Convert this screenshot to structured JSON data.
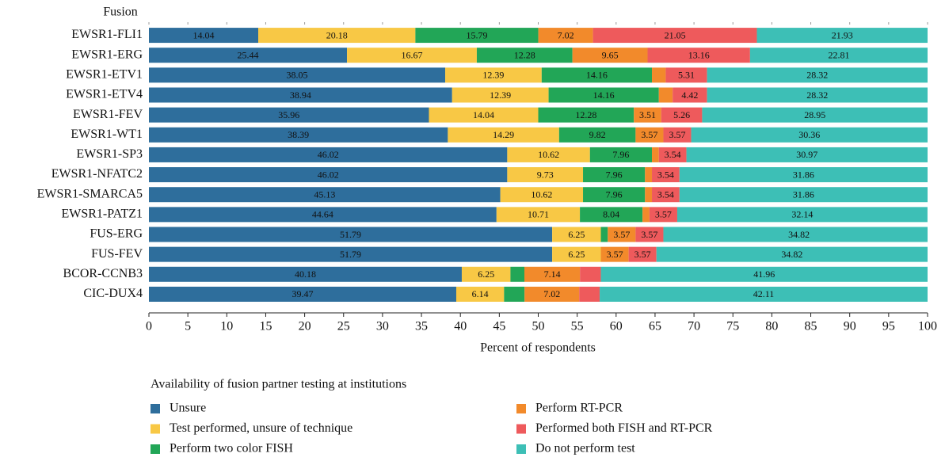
{
  "chart_data": {
    "type": "stacked-bar-horizontal",
    "y_label": "Fusion",
    "x_label": "Percent of respondents",
    "legend_title": "Availability of fusion partner testing at institutions",
    "categories": [
      "EWSR1-FLI1",
      "EWSR1-ERG",
      "EWSR1-ETV1",
      "EWSR1-ETV4",
      "EWSR1-FEV",
      "EWSR1-WT1",
      "EWSR1-SP3",
      "EWSR1-NFATC2",
      "EWSR1-SMARCA5",
      "EWSR1-PATZ1",
      "FUS-ERG",
      "FUS-FEV",
      "BCOR-CCNB3",
      "CIC-DUX4"
    ],
    "xlim": [
      0,
      100
    ],
    "xticks": [
      0,
      5,
      10,
      15,
      20,
      25,
      30,
      35,
      40,
      45,
      50,
      55,
      60,
      65,
      70,
      75,
      80,
      85,
      90,
      95,
      100
    ],
    "series": [
      {
        "name": "Unsure",
        "color": "#2e6e9c",
        "values": [
          14.04,
          25.44,
          38.05,
          38.94,
          35.96,
          38.39,
          46.02,
          46.02,
          45.13,
          44.64,
          51.79,
          51.79,
          40.18,
          39.47
        ],
        "value_labels": [
          "14.04",
          "25.44",
          "38.05",
          "38.94",
          "35.96",
          "38.39",
          "46.02",
          "46.02",
          "45.13",
          "44.64",
          "51.79",
          "51.79",
          "40.18",
          "39.47"
        ]
      },
      {
        "name": "Test performed, unsure of technique",
        "color": "#f8c845",
        "values": [
          20.18,
          16.67,
          12.39,
          12.39,
          14.04,
          14.29,
          10.62,
          9.73,
          10.62,
          10.71,
          6.25,
          6.25,
          6.25,
          6.14
        ],
        "value_labels": [
          "20.18",
          "16.67",
          "12.39",
          "12.39",
          "14.04",
          "14.29",
          "10.62",
          "9.73",
          "10.62",
          "10.71",
          "6.25",
          "6.25",
          "6.25",
          "6.14"
        ]
      },
      {
        "name": "Perform two color FISH",
        "color": "#22a657",
        "values": [
          15.79,
          12.28,
          14.16,
          14.16,
          12.28,
          9.82,
          7.96,
          7.96,
          7.96,
          8.04,
          0.89,
          0,
          1.79,
          2.63
        ],
        "value_labels": [
          "15.79",
          "12.28",
          "14.16",
          "14.16",
          "12.28",
          "9.82",
          "7.96",
          "7.96",
          "7.96",
          "8.04",
          null,
          null,
          null,
          null
        ]
      },
      {
        "name": "Perform RT-PCR",
        "color": "#f28a2b",
        "values": [
          7.02,
          9.65,
          1.77,
          1.77,
          3.51,
          3.57,
          0.89,
          0.89,
          0.89,
          0.89,
          3.57,
          3.57,
          7.14,
          7.02
        ],
        "value_labels": [
          "7.02",
          "9.65",
          null,
          null,
          "3.51",
          "3.57",
          null,
          null,
          null,
          null,
          "3.57",
          "3.57",
          "7.14",
          "7.02"
        ]
      },
      {
        "name": "Performed both FISH and RT-PCR",
        "color": "#ee5a5c",
        "values": [
          21.05,
          13.16,
          5.31,
          4.42,
          5.26,
          3.57,
          3.54,
          3.54,
          3.54,
          3.57,
          3.57,
          3.57,
          2.68,
          2.63
        ],
        "value_labels": [
          "21.05",
          "13.16",
          "5.31",
          "4.42",
          "5.26",
          "3.57",
          "3.54",
          "3.54",
          "3.54",
          "3.57",
          "3.57",
          "3.57",
          null,
          null
        ]
      },
      {
        "name": "Do not perform test",
        "color": "#3dbfb6",
        "values": [
          21.93,
          22.81,
          28.32,
          28.32,
          28.95,
          30.36,
          30.97,
          31.86,
          31.86,
          32.14,
          34.82,
          34.82,
          41.96,
          42.11
        ],
        "value_labels": [
          "21.93",
          "22.81",
          "28.32",
          "28.32",
          "28.95",
          "30.36",
          "30.97",
          "31.86",
          "31.86",
          "32.14",
          "34.82",
          "34.82",
          "41.96",
          "42.11"
        ]
      }
    ]
  }
}
